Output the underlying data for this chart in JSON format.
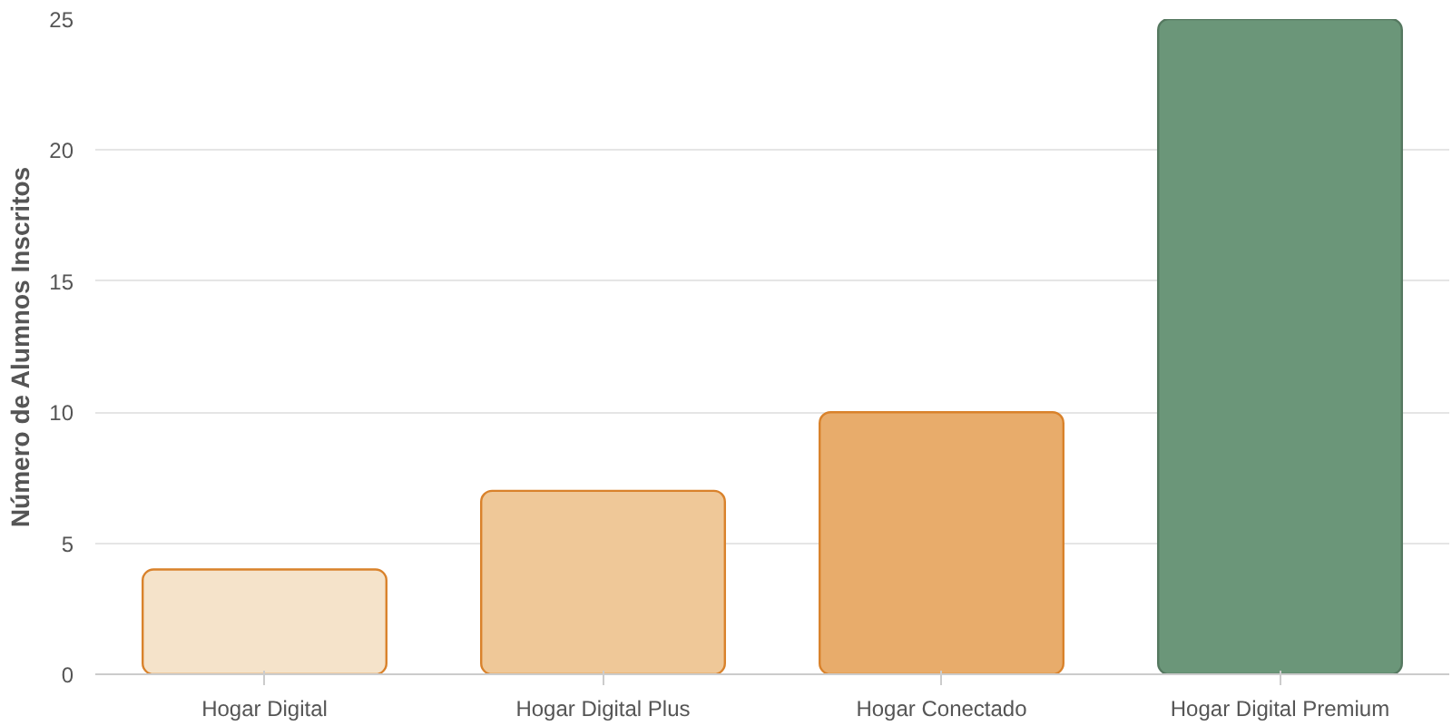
{
  "chart_data": {
    "type": "bar",
    "ylabel": "Número de Alumnos Inscritos",
    "categories": [
      "Hogar Digital",
      "Hogar Digital Plus",
      "Hogar Conectado",
      "Hogar Digital Premium"
    ],
    "values": [
      4,
      7,
      10,
      25
    ],
    "colors": [
      "#f5e3ca",
      "#efc898",
      "#e8ac6b",
      "#6b9679"
    ],
    "ylim": [
      0,
      25
    ],
    "yticks": [
      0,
      5,
      10,
      15,
      20,
      25
    ],
    "grid": "y"
  }
}
